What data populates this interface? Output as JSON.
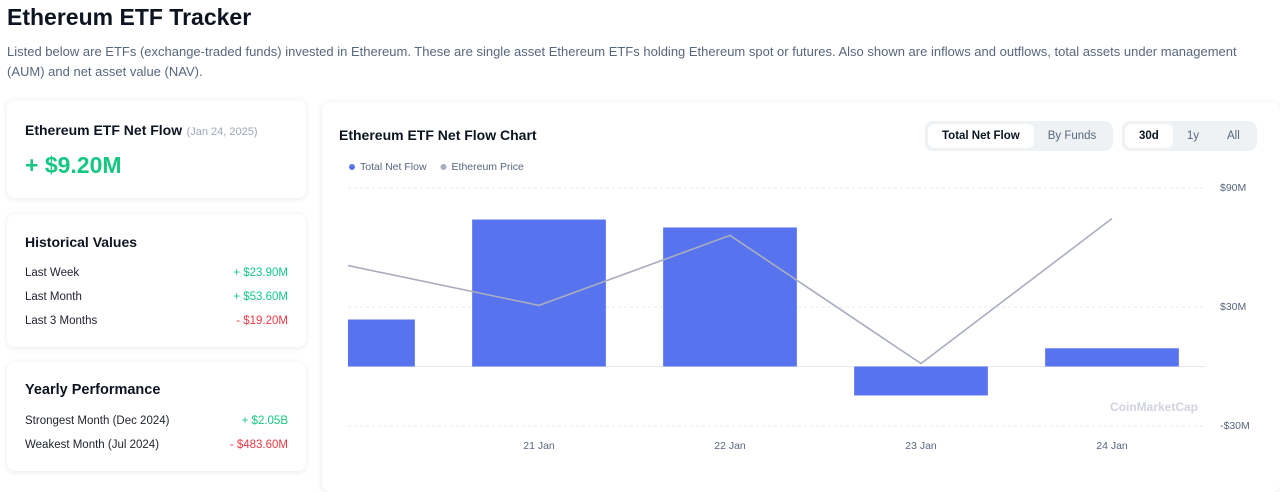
{
  "header": {
    "title": "Ethereum ETF Tracker",
    "description": "Listed below are ETFs (exchange-traded funds) invested in Ethereum. These are single asset Ethereum ETFs holding Ethereum spot or futures. Also shown are inflows and outflows, total assets under management (AUM) and net asset value (NAV)."
  },
  "net_flow_card": {
    "title": "Ethereum ETF Net Flow",
    "date": "(Jan 24, 2025)",
    "value": "+ $9.20M"
  },
  "historical": {
    "title": "Historical Values",
    "rows": [
      [
        "Last Week",
        "+ $23.90M"
      ],
      [
        "Last Month",
        "+ $53.60M"
      ],
      [
        "Last 3 Months",
        "- $19.20M"
      ]
    ]
  },
  "yearly": {
    "title": "Yearly Performance",
    "rows": [
      [
        "Strongest Month (Dec 2024)",
        "+ $2.05B"
      ],
      [
        "Weakest Month (Jul 2024)",
        "- $483.60M"
      ]
    ]
  },
  "chart_card": {
    "tabs": [
      "Total Net Flow",
      "By Funds"
    ],
    "ranges": [
      "30d",
      "1y",
      "All"
    ],
    "watermark": "CoinMarketCap"
  },
  "chart_data": {
    "type": "bar",
    "title": "Ethereum ETF Net Flow Chart",
    "categories": [
      null,
      "21 Jan",
      "22 Jan",
      "23 Jan",
      "24 Jan"
    ],
    "series": [
      {
        "name": "Total Net Flow",
        "type": "bar",
        "color": "#5873ee",
        "values": [
          23.7,
          74.1,
          70.1,
          -14.6,
          9.2
        ]
      },
      {
        "name": "Ethereum Price",
        "type": "line",
        "color": "#a9adbf",
        "values": [
          50.9,
          30.8,
          66.1,
          1.5,
          74.6
        ]
      }
    ],
    "ylim": [
      -30,
      90
    ],
    "yticks": [
      {
        "value": 90,
        "label": "$90M"
      },
      {
        "value": 30,
        "label": "$30M"
      },
      {
        "value": -30,
        "label": "-$30M"
      }
    ],
    "grid": true
  }
}
